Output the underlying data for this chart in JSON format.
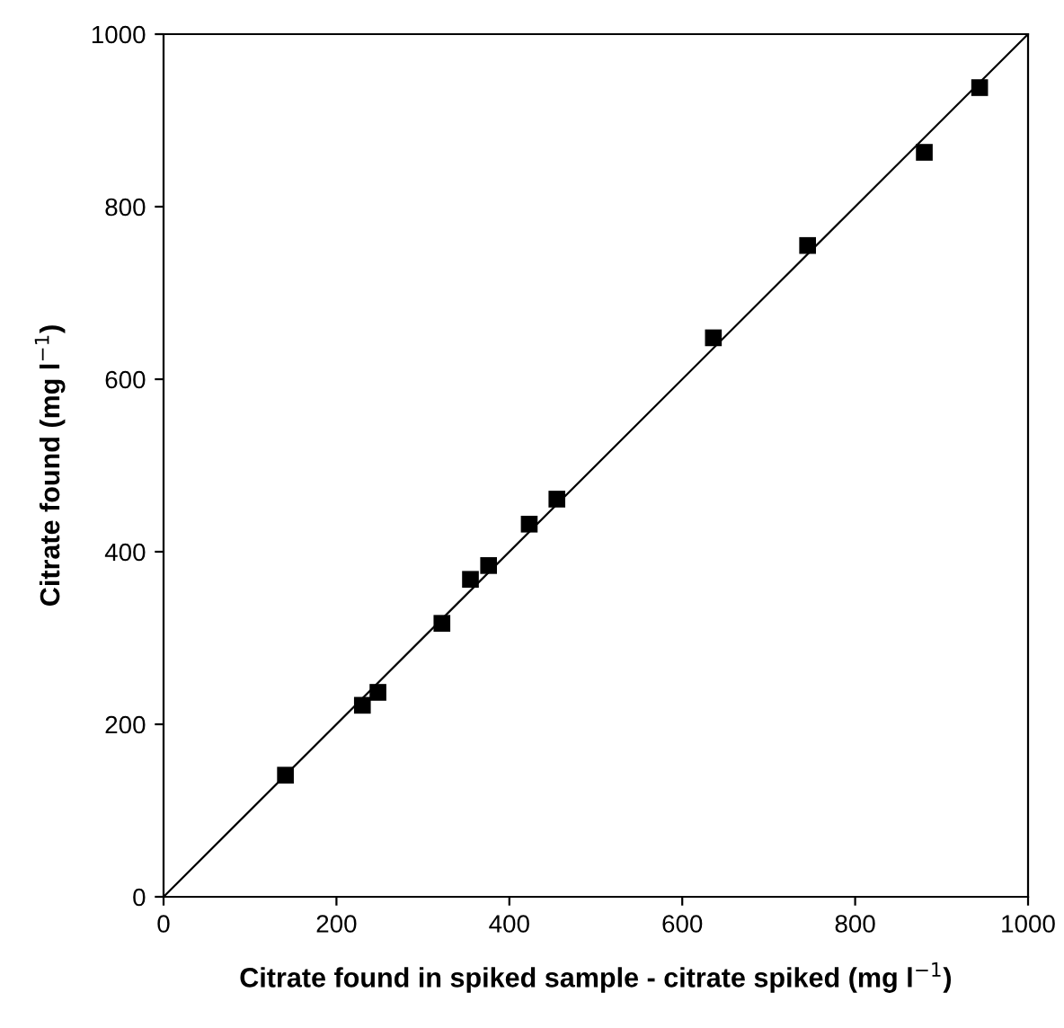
{
  "chart_data": {
    "type": "scatter",
    "xlabel": "Citrate found in spiked sample - citrate spiked (mg l$^{−1}$)",
    "ylabel": "Citrate found (mg l$^{−1}$)",
    "xlim": [
      0,
      1000
    ],
    "ylim": [
      0,
      1000
    ],
    "xticks": [
      0,
      200,
      400,
      600,
      800,
      1000
    ],
    "yticks": [
      0,
      200,
      400,
      600,
      800,
      1000
    ],
    "grid": false,
    "legend": false,
    "marker": "square",
    "series": [
      {
        "color": "#000000",
        "x": [
          141,
          230,
          248,
          322,
          355,
          376,
          423,
          455,
          636,
          745,
          880,
          944
        ],
        "values": [
          141,
          222,
          237,
          317,
          368,
          384,
          432,
          461,
          648,
          755,
          863,
          938
        ]
      },
      {
        "type": "line",
        "color": "#000000",
        "line_style": "solid",
        "marker": "none",
        "x": [
          0,
          1000
        ],
        "values": [
          0,
          1000
        ]
      }
    ]
  }
}
